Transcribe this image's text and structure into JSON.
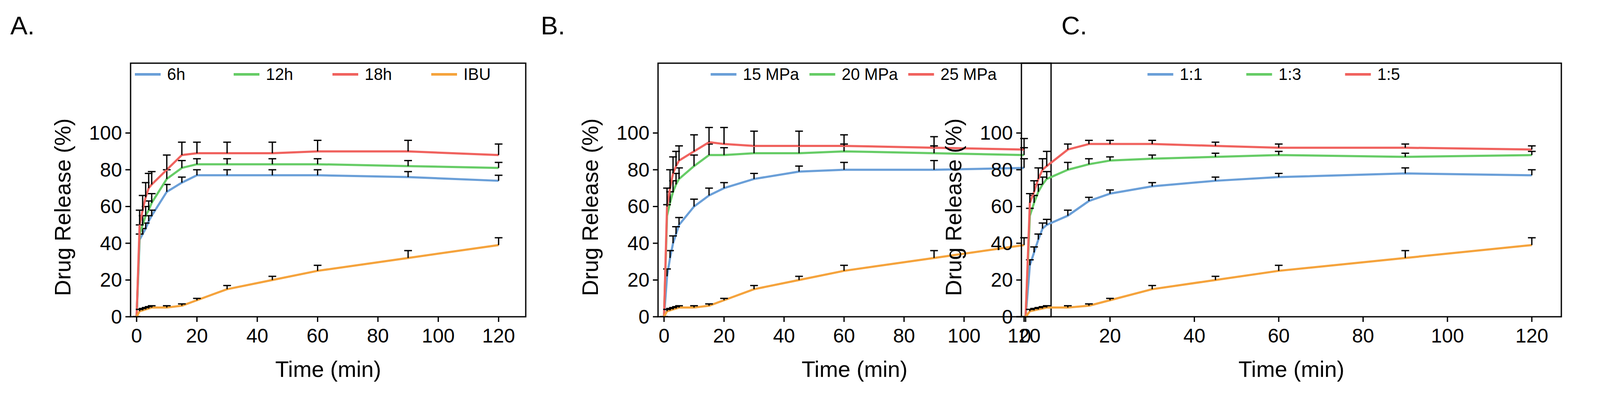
{
  "chart_data": [
    {
      "type": "line",
      "panel_label": "A.",
      "x_label": "Time (min)",
      "y_label": "Drug Release (%)",
      "x": [
        0,
        1,
        2,
        3,
        4,
        5,
        10,
        15,
        20,
        30,
        45,
        60,
        90,
        120
      ],
      "xlim": [
        -2,
        129
      ],
      "xticks": [
        0,
        20,
        40,
        60,
        80,
        100,
        120
      ],
      "ylim": [
        0,
        138
      ],
      "yticks": [
        0,
        20,
        40,
        60,
        80,
        100
      ],
      "legend": "top",
      "series": [
        {
          "name": "6h",
          "color": "#6a9fd8",
          "values": [
            0,
            42,
            45,
            48,
            52,
            55,
            68,
            73,
            77,
            77,
            77,
            77,
            76,
            74
          ],
          "errors": [
            0,
            3,
            3,
            3,
            3,
            3,
            4,
            3,
            3,
            3,
            3,
            3,
            3,
            3
          ]
        },
        {
          "name": "12h",
          "color": "#66cc66",
          "values": [
            0,
            45,
            50,
            55,
            58,
            62,
            75,
            81,
            83,
            83,
            83,
            83,
            82,
            81
          ],
          "errors": [
            0,
            5,
            5,
            5,
            5,
            5,
            5,
            4,
            3,
            3,
            3,
            3,
            3,
            3
          ]
        },
        {
          "name": "18h",
          "color": "#f0625e",
          "values": [
            0,
            50,
            58,
            65,
            70,
            72,
            80,
            88,
            89,
            89,
            89,
            90,
            90,
            88
          ],
          "errors": [
            0,
            8,
            8,
            8,
            8,
            7,
            8,
            7,
            6,
            6,
            6,
            6,
            6,
            6
          ]
        },
        {
          "name": "IBU",
          "color": "#f5a33c",
          "values": [
            0,
            3,
            3.5,
            4,
            4.5,
            5,
            5,
            6,
            9,
            15,
            20,
            25,
            32,
            39
          ],
          "errors": [
            0,
            1,
            1,
            1,
            1,
            1,
            1,
            1,
            1,
            2,
            2,
            3,
            4,
            4
          ]
        }
      ]
    },
    {
      "type": "line",
      "panel_label": "B.",
      "x_label": "Time (min)",
      "y_label": "Drug Release (%)",
      "x": [
        0,
        1,
        2,
        3,
        4,
        5,
        10,
        15,
        20,
        30,
        45,
        60,
        90,
        120
      ],
      "xlim": [
        -2,
        129
      ],
      "xticks": [
        0,
        20,
        40,
        60,
        80,
        100,
        120
      ],
      "ylim": [
        0,
        138
      ],
      "yticks": [
        0,
        20,
        40,
        60,
        80,
        100
      ],
      "legend": "top",
      "series": [
        {
          "name": "15 MPa",
          "color": "#6a9fd8",
          "values": [
            0,
            22,
            32,
            40,
            45,
            50,
            60,
            66,
            70,
            75,
            79,
            80,
            80,
            81
          ],
          "errors": [
            0,
            4,
            4,
            4,
            4,
            4,
            4,
            4,
            3,
            3,
            3,
            4,
            5,
            5
          ]
        },
        {
          "name": "20 MPa",
          "color": "#66cc66",
          "values": [
            0,
            55,
            62,
            68,
            72,
            75,
            82,
            88,
            88,
            89,
            89,
            90,
            89,
            88
          ],
          "errors": [
            0,
            6,
            6,
            6,
            6,
            6,
            6,
            6,
            4,
            4,
            4,
            4,
            4,
            4
          ]
        },
        {
          "name": "25 MPa",
          "color": "#f0625e",
          "values": [
            0,
            60,
            70,
            78,
            82,
            85,
            90,
            95,
            94,
            93,
            93,
            93,
            92,
            91
          ],
          "errors": [
            0,
            10,
            10,
            9,
            8,
            8,
            9,
            8,
            9,
            8,
            8,
            6,
            6,
            6
          ]
        },
        {
          "color": "#f5a33c",
          "values": [
            0,
            3,
            3.5,
            4,
            4.5,
            5,
            5,
            6,
            9,
            15,
            20,
            25,
            32,
            39
          ],
          "errors": [
            0,
            1,
            1,
            1,
            1,
            1,
            1,
            1,
            1,
            2,
            2,
            3,
            4,
            4
          ]
        }
      ]
    },
    {
      "type": "line",
      "panel_label": "C.",
      "x_label": "Time (min)",
      "y_label": "Drug Release (%)",
      "x": [
        0,
        1,
        2,
        3,
        4,
        5,
        10,
        15,
        20,
        30,
        45,
        60,
        90,
        120
      ],
      "xlim": [
        -1,
        127
      ],
      "xticks": [
        0,
        20,
        40,
        60,
        80,
        100,
        120
      ],
      "ylim": [
        0,
        138
      ],
      "yticks": [
        0,
        20,
        40,
        60,
        80,
        100
      ],
      "legend": "top",
      "series": [
        {
          "name": "1:1",
          "color": "#6a9fd8",
          "values": [
            0,
            28,
            35,
            42,
            48,
            50,
            55,
            63,
            67,
            71,
            74,
            76,
            78,
            77
          ],
          "errors": [
            0,
            3,
            3,
            3,
            3,
            3,
            3,
            2,
            2,
            2,
            2,
            2,
            3,
            3
          ]
        },
        {
          "name": "1:3",
          "color": "#66cc66",
          "values": [
            0,
            55,
            62,
            68,
            72,
            75,
            80,
            83,
            85,
            86,
            87,
            88,
            87,
            88
          ],
          "errors": [
            0,
            4,
            4,
            4,
            4,
            4,
            4,
            3,
            2,
            2,
            2,
            2,
            2,
            2
          ]
        },
        {
          "name": "1:5",
          "color": "#f0625e",
          "values": [
            0,
            62,
            68,
            75,
            80,
            82,
            91,
            94,
            94,
            94,
            93,
            92,
            92,
            91
          ],
          "errors": [
            0,
            5,
            6,
            6,
            6,
            8,
            3,
            2,
            2,
            2,
            2,
            2,
            2,
            2
          ]
        },
        {
          "color": "#f5a33c",
          "values": [
            0,
            3,
            3.5,
            4,
            4.5,
            5,
            5,
            6,
            9,
            15,
            20,
            25,
            32,
            39
          ],
          "errors": [
            0,
            1,
            1,
            1,
            1,
            1,
            1,
            1,
            1,
            2,
            2,
            3,
            4,
            4
          ]
        }
      ]
    }
  ]
}
